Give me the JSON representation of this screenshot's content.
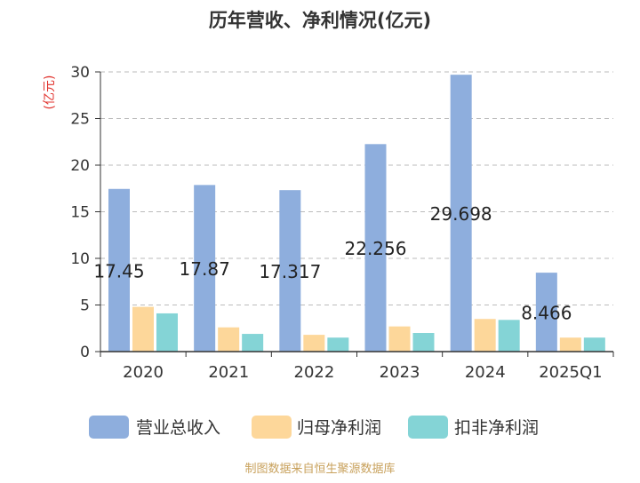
{
  "chart_data": {
    "type": "bar",
    "title": "历年营收、净利情况(亿元)",
    "ylabel": "(亿元)",
    "xlabel": "",
    "categories": [
      "2020",
      "2021",
      "2022",
      "2023",
      "2024",
      "2025Q1"
    ],
    "ylim": [
      0,
      30
    ],
    "yticks": [
      0,
      5,
      10,
      15,
      20,
      25,
      30
    ],
    "grid": true,
    "legend_position": "bottom",
    "series": [
      {
        "name": "营业总收入",
        "color": "#8eaedd",
        "values": [
          17.45,
          17.87,
          17.317,
          22.256,
          29.698,
          8.466
        ]
      },
      {
        "name": "归母净利润",
        "color": "#fdd79a",
        "values": [
          4.8,
          2.6,
          1.8,
          2.7,
          3.5,
          1.5
        ]
      },
      {
        "name": "扣非净利润",
        "color": "#84d4d6",
        "values": [
          4.1,
          1.9,
          1.5,
          2.0,
          3.4,
          1.5
        ]
      }
    ],
    "data_labels": [
      "17.45",
      "17.87",
      "17.317",
      "22.256",
      "29.698",
      "8.466"
    ],
    "footer": "制图数据来自恒生聚源数据库"
  }
}
